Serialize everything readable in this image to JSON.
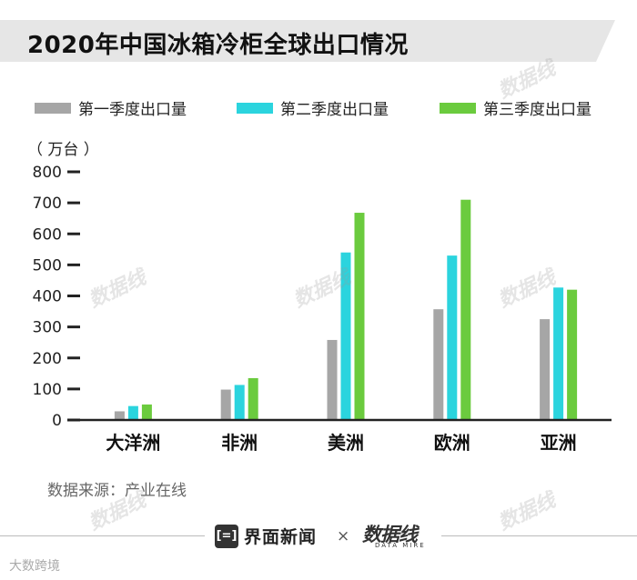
{
  "title": "2020年中国冰箱冷柜全球出口情况",
  "unit": "（ 万台 ）",
  "source": "数据来源：产业在线",
  "footer": {
    "brand": "界面新闻",
    "times": "×",
    "logo": "数据线",
    "logo_sub": "DATA MIRE"
  },
  "corner_mark": "大数跨境",
  "watermark_text": "数据线",
  "colors": {
    "title_banner": "#e6e6e6",
    "q1": "#a6a6a6",
    "q2": "#2bd4de",
    "q3": "#6bcb3e",
    "axis": "#222222"
  },
  "chart_data": {
    "type": "bar",
    "title": "2020年中国冰箱冷柜全球出口情况",
    "xlabel": "",
    "ylabel": "（ 万台 ）",
    "categories": [
      "大洋洲",
      "非洲",
      "美洲",
      "欧洲",
      "亚洲"
    ],
    "series": [
      {
        "name": "第一季度出口量",
        "values": [
          28,
          98,
          258,
          357,
          325
        ]
      },
      {
        "name": "第二季度出口量",
        "values": [
          45,
          113,
          540,
          530,
          427
        ]
      },
      {
        "name": "第三季度出口量",
        "values": [
          50,
          135,
          668,
          710,
          420
        ]
      }
    ],
    "ylim": [
      0,
      800
    ],
    "yticks": [
      0,
      100,
      200,
      300,
      400,
      500,
      600,
      700,
      800
    ],
    "legend_position": "top",
    "grid": false
  }
}
